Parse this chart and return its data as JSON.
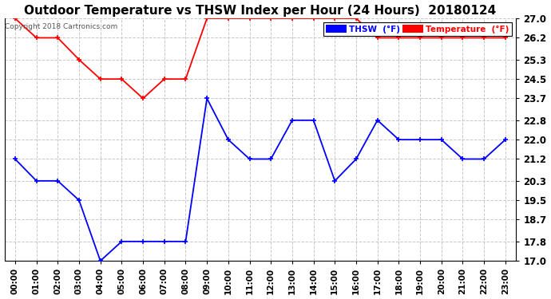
{
  "title": "Outdoor Temperature vs THSW Index per Hour (24 Hours)  20180124",
  "copyright": "Copyright 2018 Cartronics.com",
  "hours": [
    "00:00",
    "01:00",
    "02:00",
    "03:00",
    "04:00",
    "05:00",
    "06:00",
    "07:00",
    "08:00",
    "09:00",
    "10:00",
    "11:00",
    "12:00",
    "13:00",
    "14:00",
    "15:00",
    "16:00",
    "17:00",
    "18:00",
    "19:00",
    "20:00",
    "21:00",
    "22:00",
    "23:00"
  ],
  "temperature": [
    27.0,
    26.2,
    26.2,
    25.3,
    24.5,
    24.5,
    23.7,
    24.5,
    24.5,
    27.0,
    27.0,
    27.0,
    27.0,
    27.0,
    27.0,
    27.0,
    27.0,
    26.2,
    26.2,
    26.2,
    26.2,
    26.2,
    26.2,
    26.2
  ],
  "thsw": [
    21.2,
    20.3,
    20.3,
    19.5,
    17.0,
    17.8,
    17.8,
    17.8,
    17.8,
    23.7,
    22.0,
    21.2,
    21.2,
    22.8,
    22.8,
    20.3,
    21.2,
    22.8,
    22.0,
    22.0,
    22.0,
    21.2,
    21.2,
    22.0
  ],
  "thsw_color": "#0000ff",
  "temp_color": "#ff0000",
  "ylim": [
    17.0,
    27.0
  ],
  "yticks": [
    17.0,
    17.8,
    18.7,
    19.5,
    20.3,
    21.2,
    22.0,
    22.8,
    23.7,
    24.5,
    25.3,
    26.2,
    27.0
  ],
  "background_color": "#ffffff",
  "plot_bg_color": "#ffffff",
  "grid_color": "#c8c8c8",
  "title_fontsize": 11,
  "legend_thsw_label": "THSW  (°F)",
  "legend_temp_label": "Temperature  (°F)",
  "legend_thsw_bg": "#0000ff",
  "legend_temp_bg": "#ff0000"
}
